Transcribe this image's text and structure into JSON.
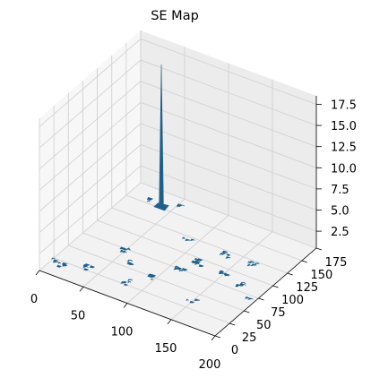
{
  "chart_data": {
    "type": "surface3d",
    "title": "SE Map",
    "xlabel": "",
    "ylabel": "",
    "zlabel": "",
    "x_ticks": [
      "0",
      "50",
      "100",
      "150",
      "200"
    ],
    "y_ticks": [
      "0",
      "25",
      "50",
      "75",
      "100",
      "125",
      "150",
      "175"
    ],
    "z_ticks": [
      "2.5",
      "5.0",
      "7.5",
      "10.0",
      "12.5",
      "15.0",
      "17.5"
    ],
    "xlim": [
      0,
      200
    ],
    "ylim": [
      0,
      175
    ],
    "zlim": [
      0.5,
      18.5
    ],
    "grid": true,
    "surface_color": "#1f5f8b",
    "peak": {
      "x": 40,
      "y": 150,
      "z": 17.5
    },
    "patches": [
      {
        "x": 5,
        "y": 20
      },
      {
        "x": 15,
        "y": 15
      },
      {
        "x": 35,
        "y": 25
      },
      {
        "x": 50,
        "y": 70
      },
      {
        "x": 65,
        "y": 55
      },
      {
        "x": 80,
        "y": 25
      },
      {
        "x": 95,
        "y": 45
      },
      {
        "x": 110,
        "y": 70
      },
      {
        "x": 120,
        "y": 90
      },
      {
        "x": 135,
        "y": 115
      },
      {
        "x": 150,
        "y": 90
      },
      {
        "x": 165,
        "y": 115
      },
      {
        "x": 175,
        "y": 80
      },
      {
        "x": 25,
        "y": 150
      },
      {
        "x": 55,
        "y": 160
      },
      {
        "x": 195,
        "y": 70
      },
      {
        "x": 90,
        "y": 115
      },
      {
        "x": 150,
        "y": 35
      }
    ]
  }
}
